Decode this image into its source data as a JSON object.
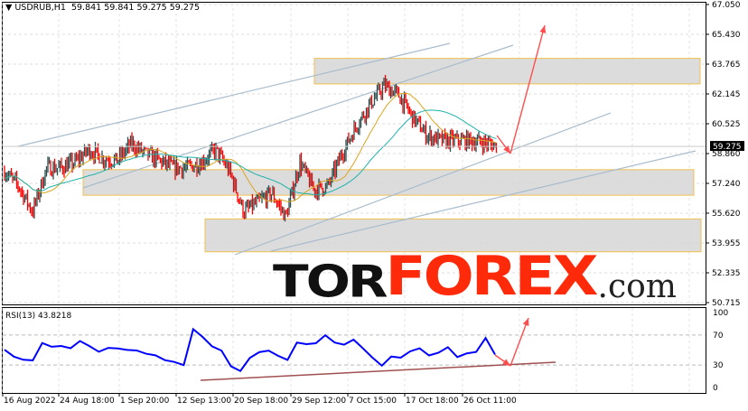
{
  "header": {
    "symbol": "USDRUB,H1",
    "ohlc": "59.841 59.841 59.275 59.275",
    "menu_icon": "triangle-down-icon"
  },
  "logo": {
    "part1": "TOR",
    "part2": "FOREX",
    "part3": ".com",
    "colors": {
      "tor": "#111111",
      "forex": "#ff2a0a"
    }
  },
  "chart_data": [
    {
      "type": "candlestick",
      "title": "USDRUB,H1",
      "ylim": [
        50.715,
        67.05
      ],
      "y_ticks": [
        "67.050",
        "65.430",
        "63.765",
        "62.145",
        "60.525",
        "58.860",
        "57.240",
        "55.620",
        "53.955",
        "52.335",
        "50.715"
      ],
      "current_price": "59.275",
      "x_ticks": [
        "16 Aug 2022",
        "24 Aug 18:00",
        "1 Sep 20:00",
        "12 Sep 13:00",
        "20 Sep 18:00",
        "29 Sep 12:00",
        "7 Oct 15:00",
        "17 Oct 18:00",
        "26 Oct 11:00"
      ],
      "close_approx": {
        "x": [
          "16 Aug",
          "18 Aug",
          "22 Aug",
          "23 Aug",
          "24 Aug",
          "26 Aug",
          "29 Aug",
          "31 Aug",
          "1 Sep",
          "5 Sep",
          "7 Sep",
          "9 Sep",
          "13 Sep",
          "15 Sep",
          "19 Sep",
          "20 Sep",
          "21 Sep",
          "22 Sep",
          "23 Sep",
          "26 Sep",
          "28 Sep",
          "29 Sep",
          "30 Sep",
          "3 Oct",
          "5 Oct",
          "6 Oct",
          "7 Oct",
          "10 Oct",
          "11 Oct",
          "13 Oct",
          "17 Oct",
          "19 Oct",
          "21 Oct",
          "25 Oct",
          "27 Oct",
          "31 Oct"
        ],
        "y": [
          57.9,
          57.1,
          55.7,
          58.1,
          58.1,
          58.4,
          59.1,
          58.6,
          58.5,
          59.4,
          58.9,
          58.5,
          58.1,
          58.1,
          58.4,
          59.1,
          57.9,
          55.7,
          56.2,
          56.7,
          55.4,
          58.4,
          56.9,
          57.1,
          58.9,
          60.4,
          61.6,
          62.6,
          62.1,
          60.9,
          59.9,
          59.6,
          59.6,
          59.6,
          59.5,
          59.3
        ]
      },
      "zones": [
        [
          62.7,
          64.1
        ],
        [
          56.6,
          58.0
        ],
        [
          53.5,
          55.3
        ]
      ],
      "colors": {
        "bull": "#2f4f4f",
        "bear": "#ff0000",
        "ma_fast": "#daa520",
        "ma_slow": "#20b2aa",
        "zone_fill": "#d8d8d8",
        "zone_border": "#f0c050",
        "trendline": "#a8bccc",
        "arrow": "#ff4c4c"
      }
    },
    {
      "type": "line",
      "title": "RSI(13) 43.8218",
      "ylim": [
        0,
        100
      ],
      "y_ticks": [
        "100",
        "70",
        "30",
        "0"
      ],
      "series": [
        {
          "name": "RSI(13)",
          "values": [
            50,
            40,
            35,
            38,
            62,
            55,
            58,
            50,
            60,
            55,
            45,
            50,
            50,
            52,
            48,
            45,
            40,
            38,
            32,
            32,
            75,
            68,
            55,
            52,
            30,
            22,
            38,
            45,
            50,
            42,
            35,
            60,
            55,
            58,
            70,
            60,
            58,
            65,
            55,
            40,
            30,
            42,
            38,
            48,
            50,
            45,
            48,
            52,
            42,
            45,
            48,
            65,
            44
          ]
        }
      ],
      "colors": {
        "line": "#0000ff",
        "trendline": "#a05050"
      }
    }
  ]
}
